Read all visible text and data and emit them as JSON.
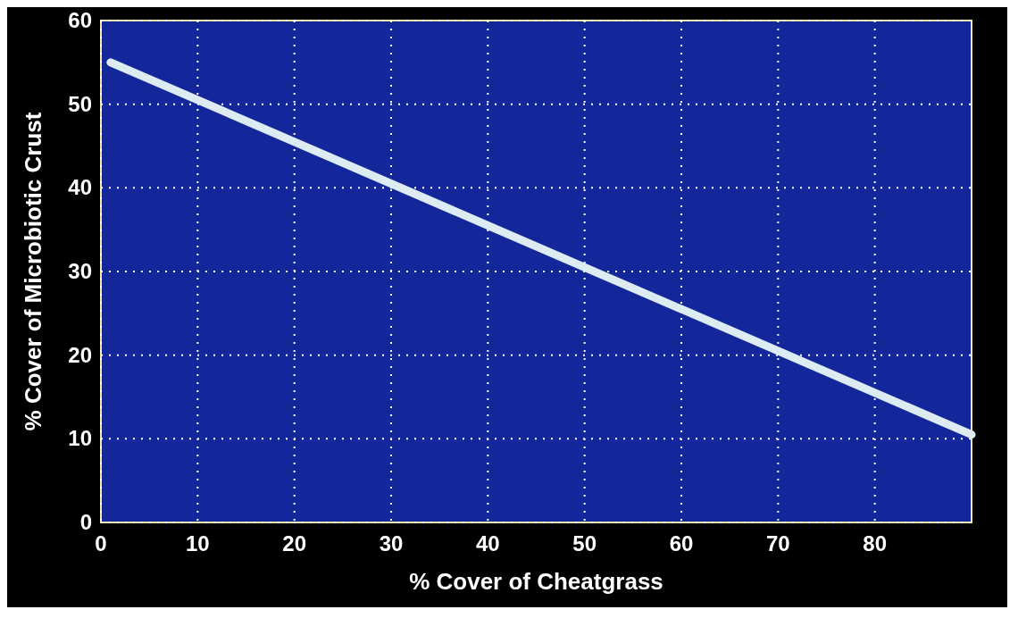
{
  "chart_data": {
    "type": "line",
    "xlabel": "% Cover of Cheatgrass",
    "ylabel": "% Cover of Microbiotic Crust",
    "x": [
      1,
      90
    ],
    "series": [
      {
        "color": "#dcecf2",
        "values": [
          55,
          10.5
        ]
      }
    ],
    "xlim": [
      0,
      90
    ],
    "xticks": [
      0,
      10,
      20,
      30,
      40,
      50,
      60,
      70,
      80
    ],
    "ylim": [
      0,
      60
    ],
    "yticks": [
      0,
      10,
      20,
      30,
      40,
      50,
      60
    ],
    "grid": true,
    "marker": "none",
    "line_style": "solid"
  }
}
